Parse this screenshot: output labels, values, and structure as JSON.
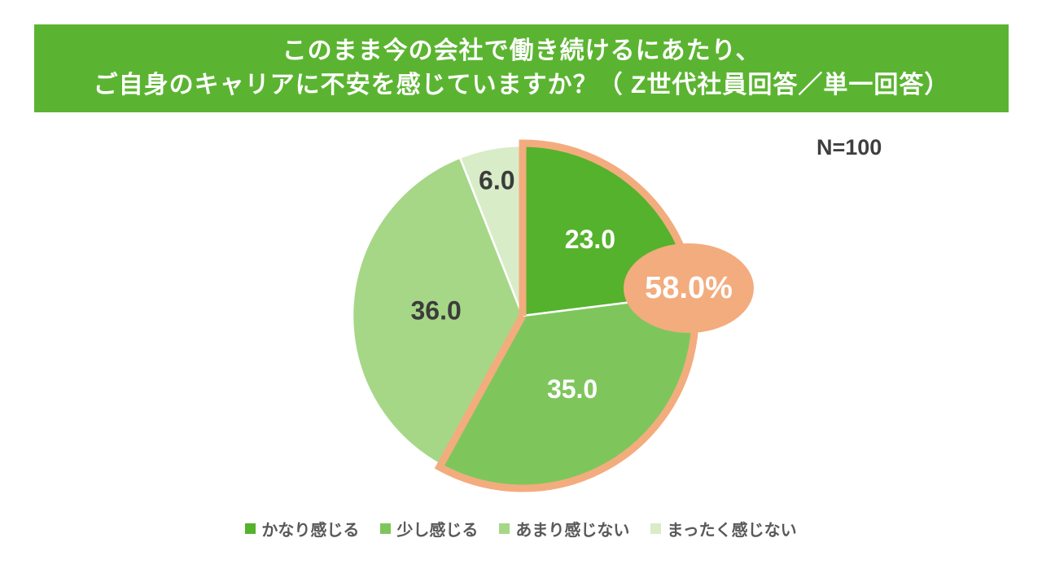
{
  "header": {
    "title_line1": "このまま今の会社で働き続けるにあたり、",
    "title_line2": "ご自身のキャリアに不安を感じていますか？（ Z世代社員回答／単一回答）",
    "bg_color": "#5BB431",
    "text_color": "#FFFFFF"
  },
  "sample_size_label": "N=100",
  "chart_data": {
    "type": "pie",
    "title": "このまま今の会社で働き続けるにあたり、ご自身のキャリアに不安を感じていますか？（ Z世代社員回答／単一回答）",
    "sample_size": "N=100",
    "categories": [
      "かなり感じる",
      "少し感じる",
      "あまり感じない",
      "まったく感じない"
    ],
    "values": [
      23.0,
      35.0,
      36.0,
      6.0
    ],
    "data_labels": [
      "23.0",
      "35.0",
      "36.0",
      "6.0"
    ],
    "unit": "percent",
    "start_angle": "12-oclock",
    "direction": "clockwise",
    "colors": [
      "#55B22C",
      "#7EC65C",
      "#A6D787",
      "#D8ECC7"
    ],
    "label_colors": [
      "#FFFFFF",
      "#FFFFFF",
      "#3C3C3C",
      "#3C3C3C"
    ],
    "slice_border_color": "#FFFFFF",
    "legend_position": "bottom",
    "legend_text_color": "#595959",
    "highlight": {
      "slice_indices": [
        0,
        1
      ],
      "combined_value": 58.0,
      "callout_label": "58.0%",
      "color": "#F3AC7E",
      "callout_text_color": "#FFFFFF"
    }
  }
}
